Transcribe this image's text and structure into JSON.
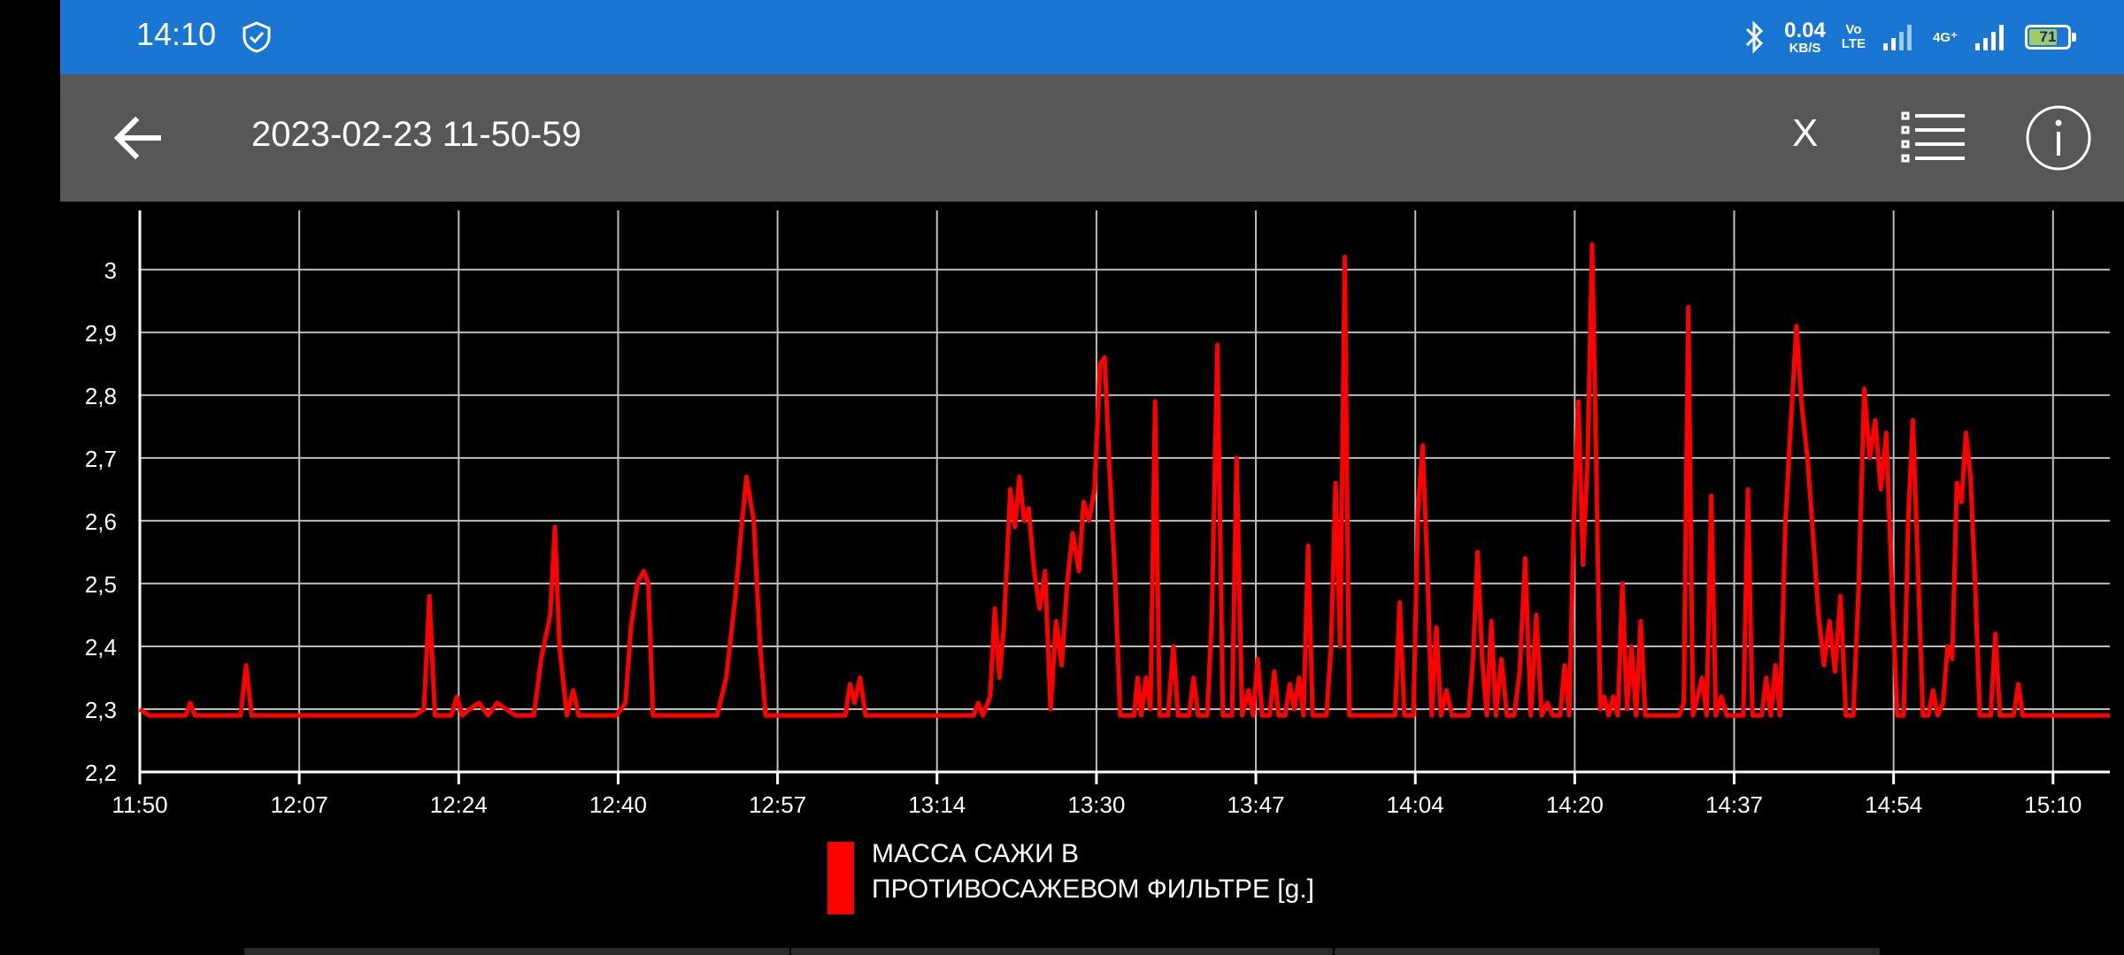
{
  "status_bar": {
    "time": "14:10",
    "net_speed_value": "0.04",
    "net_speed_unit": "KB/S",
    "volte_top": "Vo",
    "volte_bottom": "LTE",
    "network_type": "4G⁺",
    "battery_level": "71",
    "color": "#1976d2"
  },
  "app_bar": {
    "title": "2023-02-23 11-50-59",
    "x_button_label": "X",
    "back_icon": "arrow-left-icon",
    "list_icon": "list-icon",
    "info_icon": "info-icon",
    "color": "#575757"
  },
  "chart_data": {
    "type": "line",
    "xlabel": "",
    "ylabel": "",
    "x_tick_labels": [
      "11:50",
      "12:07",
      "12:24",
      "12:40",
      "12:57",
      "13:14",
      "13:30",
      "13:47",
      "14:04",
      "14:20",
      "14:37",
      "14:54",
      "15:10"
    ],
    "y_ticks": [
      "2,2",
      "2,3",
      "2,4",
      "2,5",
      "2,6",
      "2,7",
      "2,8",
      "2,9",
      "3"
    ],
    "ylim": [
      2.2,
      3.08
    ],
    "xlim_minutes": [
      0,
      215
    ],
    "grid": true,
    "legend_position": "bottom-center",
    "series": [
      {
        "name": "МАССА САЖИ В ПРОТИВОСАЖЕВОМ ФИЛЬТРЕ [g.]",
        "legend_line1": "МАССА САЖИ В",
        "legend_line2": "ПРОТИВОСАЖЕВОМ ФИЛЬТРЕ [g.]",
        "color": "#ff0000",
        "points": [
          [
            0,
            2.3
          ],
          [
            1,
            2.29
          ],
          [
            5,
            2.29
          ],
          [
            5.5,
            2.31
          ],
          [
            6,
            2.29
          ],
          [
            11,
            2.29
          ],
          [
            11.6,
            2.37
          ],
          [
            12.2,
            2.29
          ],
          [
            16,
            2.29
          ],
          [
            30,
            2.29
          ],
          [
            31,
            2.3
          ],
          [
            31.6,
            2.48
          ],
          [
            32.2,
            2.29
          ],
          [
            34,
            2.29
          ],
          [
            34.6,
            2.32
          ],
          [
            35.2,
            2.29
          ],
          [
            36,
            2.3
          ],
          [
            37,
            2.31
          ],
          [
            38,
            2.29
          ],
          [
            39,
            2.31
          ],
          [
            40,
            2.3
          ],
          [
            41,
            2.29
          ],
          [
            43,
            2.29
          ],
          [
            43.8,
            2.38
          ],
          [
            44.8,
            2.45
          ],
          [
            45.3,
            2.59
          ],
          [
            45.8,
            2.4
          ],
          [
            46.6,
            2.29
          ],
          [
            47.3,
            2.33
          ],
          [
            47.9,
            2.29
          ],
          [
            52,
            2.29
          ],
          [
            53,
            2.31
          ],
          [
            53.6,
            2.43
          ],
          [
            54.3,
            2.5
          ],
          [
            55,
            2.52
          ],
          [
            55.5,
            2.5
          ],
          [
            56,
            2.29
          ],
          [
            60,
            2.29
          ],
          [
            63,
            2.29
          ],
          [
            64,
            2.35
          ],
          [
            65,
            2.48
          ],
          [
            65.6,
            2.58
          ],
          [
            66.2,
            2.67
          ],
          [
            67,
            2.6
          ],
          [
            67.7,
            2.4
          ],
          [
            68.3,
            2.29
          ],
          [
            76,
            2.29
          ],
          [
            77,
            2.29
          ],
          [
            77.5,
            2.34
          ],
          [
            78,
            2.31
          ],
          [
            78.6,
            2.35
          ],
          [
            79.2,
            2.29
          ],
          [
            82,
            2.29
          ],
          [
            91,
            2.29
          ],
          [
            91.5,
            2.31
          ],
          [
            92,
            2.29
          ],
          [
            92.8,
            2.32
          ],
          [
            93.3,
            2.46
          ],
          [
            93.8,
            2.35
          ],
          [
            94.3,
            2.43
          ],
          [
            95,
            2.65
          ],
          [
            95.5,
            2.59
          ],
          [
            96,
            2.67
          ],
          [
            96.5,
            2.6
          ],
          [
            97,
            2.62
          ],
          [
            97.6,
            2.52
          ],
          [
            98.2,
            2.46
          ],
          [
            98.8,
            2.52
          ],
          [
            99.4,
            2.3
          ],
          [
            100,
            2.44
          ],
          [
            100.6,
            2.37
          ],
          [
            101.2,
            2.5
          ],
          [
            101.8,
            2.58
          ],
          [
            102.5,
            2.52
          ],
          [
            103,
            2.63
          ],
          [
            103.6,
            2.6
          ],
          [
            104.2,
            2.65
          ],
          [
            104.8,
            2.85
          ],
          [
            105.3,
            2.86
          ],
          [
            105.8,
            2.69
          ],
          [
            106.4,
            2.52
          ],
          [
            107,
            2.29
          ],
          [
            108.5,
            2.29
          ],
          [
            108.9,
            2.35
          ],
          [
            109.3,
            2.29
          ],
          [
            109.8,
            2.35
          ],
          [
            110.3,
            2.3
          ],
          [
            110.8,
            2.79
          ],
          [
            111.3,
            2.29
          ],
          [
            112.2,
            2.29
          ],
          [
            112.8,
            2.4
          ],
          [
            113.3,
            2.29
          ],
          [
            114.5,
            2.29
          ],
          [
            115,
            2.35
          ],
          [
            115.5,
            2.29
          ],
          [
            116.5,
            2.29
          ],
          [
            117,
            2.45
          ],
          [
            117.6,
            2.88
          ],
          [
            118.2,
            2.29
          ],
          [
            119.2,
            2.29
          ],
          [
            119.7,
            2.7
          ],
          [
            120.3,
            2.29
          ],
          [
            121,
            2.33
          ],
          [
            121.5,
            2.29
          ],
          [
            122,
            2.38
          ],
          [
            122.5,
            2.29
          ],
          [
            123.3,
            2.29
          ],
          [
            123.8,
            2.36
          ],
          [
            124.3,
            2.29
          ],
          [
            125,
            2.29
          ],
          [
            125.5,
            2.34
          ],
          [
            126,
            2.3
          ],
          [
            126.5,
            2.35
          ],
          [
            127,
            2.29
          ],
          [
            127.5,
            2.56
          ],
          [
            128,
            2.29
          ],
          [
            129.5,
            2.29
          ],
          [
            130,
            2.4
          ],
          [
            130.5,
            2.66
          ],
          [
            131,
            2.4
          ],
          [
            131.5,
            3.02
          ],
          [
            132,
            2.29
          ],
          [
            137,
            2.29
          ],
          [
            137.5,
            2.47
          ],
          [
            138,
            2.29
          ],
          [
            139,
            2.29
          ],
          [
            139.5,
            2.62
          ],
          [
            140,
            2.72
          ],
          [
            140.5,
            2.53
          ],
          [
            141,
            2.29
          ],
          [
            141.5,
            2.43
          ],
          [
            142,
            2.29
          ],
          [
            142.6,
            2.33
          ],
          [
            143.2,
            2.29
          ],
          [
            145,
            2.29
          ],
          [
            145.5,
            2.38
          ],
          [
            146,
            2.55
          ],
          [
            146.5,
            2.38
          ],
          [
            147,
            2.29
          ],
          [
            147.5,
            2.44
          ],
          [
            148,
            2.29
          ],
          [
            148.6,
            2.38
          ],
          [
            149.2,
            2.29
          ],
          [
            150,
            2.29
          ],
          [
            150.6,
            2.36
          ],
          [
            151.2,
            2.54
          ],
          [
            151.8,
            2.29
          ],
          [
            152.4,
            2.45
          ],
          [
            153,
            2.29
          ],
          [
            153.6,
            2.31
          ],
          [
            154.2,
            2.29
          ],
          [
            155,
            2.29
          ],
          [
            155.5,
            2.37
          ],
          [
            156,
            2.29
          ],
          [
            156.5,
            2.6
          ],
          [
            157,
            2.79
          ],
          [
            157.5,
            2.53
          ],
          [
            158,
            2.7
          ],
          [
            158.5,
            3.04
          ],
          [
            159,
            2.65
          ],
          [
            159.4,
            2.3
          ],
          [
            159.8,
            2.32
          ],
          [
            160.3,
            2.29
          ],
          [
            160.8,
            2.32
          ],
          [
            161.3,
            2.29
          ],
          [
            161.8,
            2.5
          ],
          [
            162.3,
            2.3
          ],
          [
            162.8,
            2.4
          ],
          [
            163.3,
            2.29
          ],
          [
            163.8,
            2.44
          ],
          [
            164.3,
            2.29
          ],
          [
            168,
            2.29
          ],
          [
            168.5,
            2.31
          ],
          [
            169,
            2.94
          ],
          [
            169.5,
            2.29
          ],
          [
            170.5,
            2.35
          ],
          [
            171,
            2.29
          ],
          [
            171.5,
            2.64
          ],
          [
            172,
            2.29
          ],
          [
            172.6,
            2.32
          ],
          [
            173.2,
            2.29
          ],
          [
            175,
            2.29
          ],
          [
            175.5,
            2.65
          ],
          [
            176,
            2.29
          ],
          [
            177,
            2.29
          ],
          [
            177.5,
            2.35
          ],
          [
            178,
            2.29
          ],
          [
            178.5,
            2.37
          ],
          [
            179,
            2.29
          ],
          [
            179.6,
            2.6
          ],
          [
            180.2,
            2.76
          ],
          [
            180.8,
            2.91
          ],
          [
            181.4,
            2.78
          ],
          [
            182,
            2.7
          ],
          [
            182.6,
            2.58
          ],
          [
            183.2,
            2.45
          ],
          [
            183.8,
            2.37
          ],
          [
            184.4,
            2.44
          ],
          [
            185,
            2.36
          ],
          [
            185.6,
            2.48
          ],
          [
            186.2,
            2.29
          ],
          [
            187,
            2.29
          ],
          [
            187.6,
            2.5
          ],
          [
            188.2,
            2.81
          ],
          [
            188.8,
            2.7
          ],
          [
            189.4,
            2.76
          ],
          [
            190,
            2.65
          ],
          [
            190.6,
            2.74
          ],
          [
            191.2,
            2.5
          ],
          [
            191.8,
            2.29
          ],
          [
            192.5,
            2.29
          ],
          [
            193,
            2.6
          ],
          [
            193.5,
            2.76
          ],
          [
            194,
            2.55
          ],
          [
            194.6,
            2.29
          ],
          [
            195.2,
            2.29
          ],
          [
            195.7,
            2.33
          ],
          [
            196.2,
            2.29
          ],
          [
            196.8,
            2.31
          ],
          [
            197.3,
            2.4
          ],
          [
            197.8,
            2.38
          ],
          [
            198.3,
            2.66
          ],
          [
            198.8,
            2.63
          ],
          [
            199.3,
            2.74
          ],
          [
            199.8,
            2.67
          ],
          [
            200.3,
            2.5
          ],
          [
            200.8,
            2.29
          ],
          [
            202,
            2.29
          ],
          [
            202.5,
            2.42
          ],
          [
            203,
            2.29
          ],
          [
            204.5,
            2.29
          ],
          [
            205,
            2.34
          ],
          [
            205.5,
            2.29
          ],
          [
            210,
            2.29
          ],
          [
            215,
            2.29
          ]
        ]
      }
    ]
  }
}
